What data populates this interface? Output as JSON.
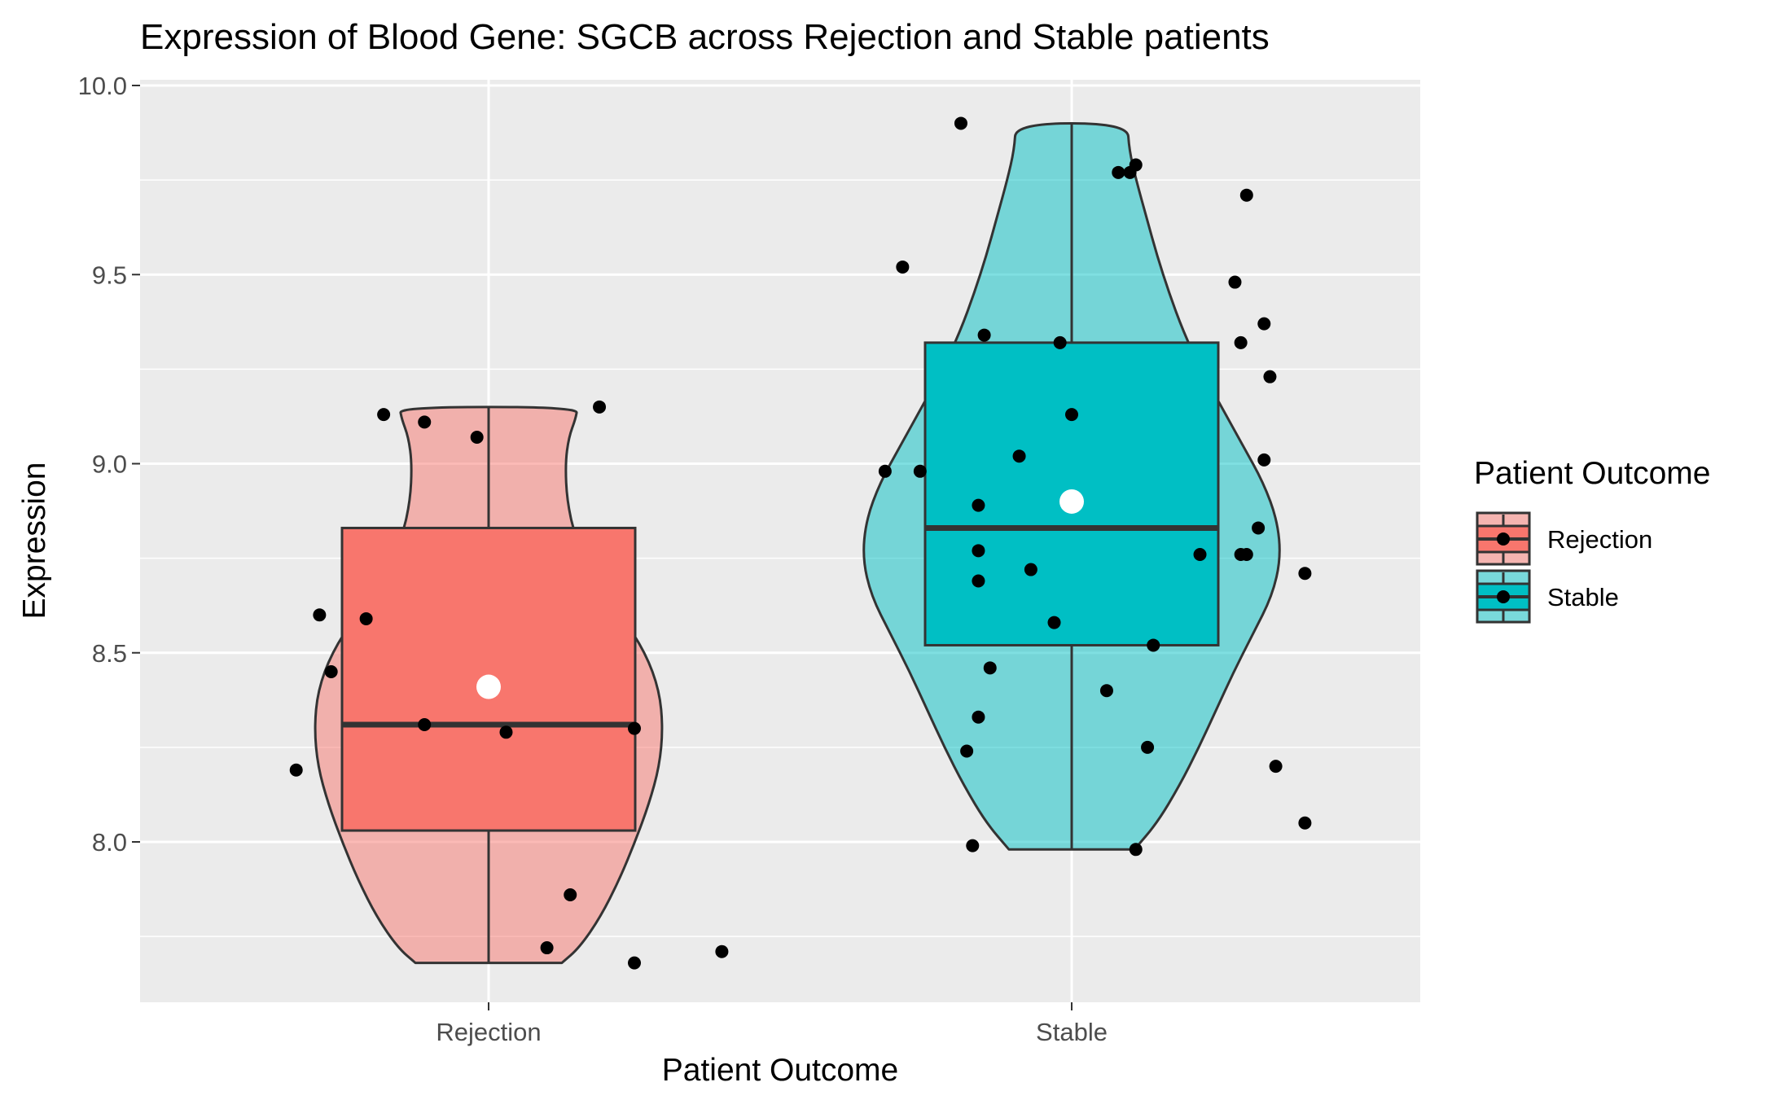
{
  "chart_data": {
    "type": "violin",
    "title": "Expression of Blood Gene: SGCB across Rejection and Stable patients",
    "xlabel": "Patient Outcome",
    "ylabel": "Expression",
    "categories": [
      "Rejection",
      "Stable"
    ],
    "y_ticks": [
      "8.0",
      "8.5",
      "9.0",
      "9.5",
      "10.0"
    ],
    "ylim": [
      7.56,
      10.03
    ],
    "grid": true,
    "legend": {
      "title": "Patient Outcome",
      "placement": "right",
      "entries": [
        "Rejection",
        "Stable"
      ]
    },
    "colors": {
      "Rejection": "#F8766D",
      "Stable": "#00BFC4",
      "panel": "#EBEBEB",
      "grid": "#FFFFFF",
      "outline": "#333333",
      "points": "#000000",
      "mean": "#FFFFFF"
    },
    "series": [
      {
        "name": "Rejection",
        "box": {
          "min": 7.68,
          "q1": 8.03,
          "median": 8.31,
          "q3": 8.83,
          "max": 9.15
        },
        "mean": 8.41,
        "violin_profile": [
          [
            7.68,
            0.42
          ],
          [
            7.72,
            0.52
          ],
          [
            7.8,
            0.64
          ],
          [
            7.9,
            0.75
          ],
          [
            8.0,
            0.84
          ],
          [
            8.1,
            0.92
          ],
          [
            8.2,
            0.98
          ],
          [
            8.3,
            1.0
          ],
          [
            8.4,
            0.98
          ],
          [
            8.5,
            0.9
          ],
          [
            8.6,
            0.76
          ],
          [
            8.7,
            0.61
          ],
          [
            8.8,
            0.5
          ],
          [
            8.9,
            0.45
          ],
          [
            9.0,
            0.44
          ],
          [
            9.07,
            0.46
          ],
          [
            9.12,
            0.5
          ],
          [
            9.15,
            0.51
          ]
        ],
        "points": [
          {
            "x": -0.33,
            "y": 8.19
          },
          {
            "x": -0.29,
            "y": 8.6
          },
          {
            "x": -0.27,
            "y": 8.45
          },
          {
            "x": -0.18,
            "y": 9.13
          },
          {
            "x": -0.21,
            "y": 8.59
          },
          {
            "x": -0.11,
            "y": 9.11
          },
          {
            "x": -0.11,
            "y": 8.31
          },
          {
            "x": -0.02,
            "y": 9.07
          },
          {
            "x": 0.03,
            "y": 8.29
          },
          {
            "x": 0.1,
            "y": 7.72
          },
          {
            "x": 0.14,
            "y": 7.86
          },
          {
            "x": 0.19,
            "y": 9.15
          },
          {
            "x": 0.25,
            "y": 7.68
          },
          {
            "x": 0.25,
            "y": 8.3
          },
          {
            "x": 0.4,
            "y": 7.71
          }
        ]
      },
      {
        "name": "Stable",
        "box": {
          "min": 7.98,
          "q1": 8.52,
          "median": 8.83,
          "q3": 9.32,
          "max": 9.9
        },
        "mean": 8.9,
        "violin_profile": [
          [
            7.98,
            0.36
          ],
          [
            8.05,
            0.49
          ],
          [
            8.15,
            0.62
          ],
          [
            8.25,
            0.73
          ],
          [
            8.35,
            0.83
          ],
          [
            8.45,
            0.93
          ],
          [
            8.55,
            1.04
          ],
          [
            8.65,
            1.15
          ],
          [
            8.75,
            1.2
          ],
          [
            8.85,
            1.18
          ],
          [
            8.95,
            1.1
          ],
          [
            9.05,
            0.98
          ],
          [
            9.15,
            0.86
          ],
          [
            9.25,
            0.74
          ],
          [
            9.35,
            0.64
          ],
          [
            9.45,
            0.56
          ],
          [
            9.55,
            0.49
          ],
          [
            9.65,
            0.43
          ],
          [
            9.75,
            0.37
          ],
          [
            9.83,
            0.33
          ],
          [
            9.9,
            0.32
          ]
        ],
        "points": [
          {
            "x": -0.19,
            "y": 9.9
          },
          {
            "x": -0.29,
            "y": 9.52
          },
          {
            "x": -0.32,
            "y": 8.98
          },
          {
            "x": -0.26,
            "y": 8.98
          },
          {
            "x": -0.16,
            "y": 8.89
          },
          {
            "x": -0.15,
            "y": 9.34
          },
          {
            "x": -0.16,
            "y": 8.77
          },
          {
            "x": -0.16,
            "y": 8.69
          },
          {
            "x": -0.14,
            "y": 8.46
          },
          {
            "x": -0.16,
            "y": 8.33
          },
          {
            "x": -0.18,
            "y": 8.24
          },
          {
            "x": -0.17,
            "y": 7.99
          },
          {
            "x": -0.09,
            "y": 9.02
          },
          {
            "x": -0.07,
            "y": 8.72
          },
          {
            "x": -0.03,
            "y": 8.58
          },
          {
            "x": -0.02,
            "y": 9.32
          },
          {
            "x": 0.0,
            "y": 9.13
          },
          {
            "x": 0.06,
            "y": 8.4
          },
          {
            "x": 0.08,
            "y": 9.77
          },
          {
            "x": 0.1,
            "y": 9.77
          },
          {
            "x": 0.11,
            "y": 9.79
          },
          {
            "x": 0.14,
            "y": 8.52
          },
          {
            "x": 0.13,
            "y": 8.25
          },
          {
            "x": 0.11,
            "y": 7.98
          },
          {
            "x": 0.22,
            "y": 8.76
          },
          {
            "x": 0.28,
            "y": 9.48
          },
          {
            "x": 0.29,
            "y": 8.76
          },
          {
            "x": 0.29,
            "y": 9.32
          },
          {
            "x": 0.3,
            "y": 8.76
          },
          {
            "x": 0.3,
            "y": 9.71
          },
          {
            "x": 0.32,
            "y": 8.83
          },
          {
            "x": 0.33,
            "y": 9.37
          },
          {
            "x": 0.33,
            "y": 9.01
          },
          {
            "x": 0.34,
            "y": 9.23
          },
          {
            "x": 0.35,
            "y": 8.2
          },
          {
            "x": 0.4,
            "y": 8.71
          },
          {
            "x": 0.4,
            "y": 8.05
          }
        ]
      }
    ]
  }
}
